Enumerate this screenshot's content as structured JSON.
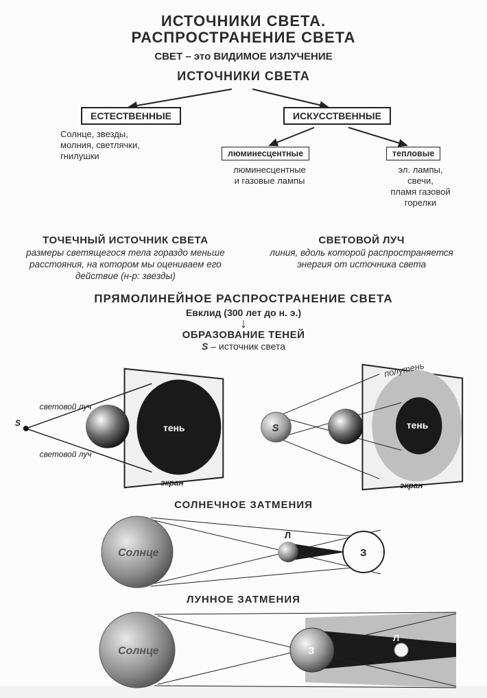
{
  "title_line1": "ИСТОЧНИКИ СВЕТА.",
  "title_line2": "РАСПРОСТРАНЕНИЕ СВЕТА",
  "subtitle_prefix": "СВЕТ",
  "subtitle_rest": " – это ВИДИМОЕ ИЗЛУЧЕНИЕ",
  "sources_heading": "ИСТОЧНИКИ СВЕТА",
  "tree": {
    "natural": {
      "label": "ЕСТЕСТВЕННЫЕ",
      "examples": "Солнце, звезды,\nмолния, светлячки,\nгнилушки"
    },
    "artificial": {
      "label": "ИСКУССТВЕННЫЕ",
      "lumin": {
        "label": "люминесцентные",
        "examples": "люминесцентные\nи газовые лампы"
      },
      "thermal": {
        "label": "тепловые",
        "examples": "эл. лампы,\nсвечи,\nпламя газовой\nгорелки"
      }
    }
  },
  "point_source": {
    "heading": "ТОЧЕЧНЫЙ ИСТОЧНИК СВЕТА",
    "body": "размеры светящегося тела гораздо меньше расстояния, на котором мы оцениваем его действие (н-р: звезды)"
  },
  "ray": {
    "heading": "СВЕТОВОЙ ЛУЧ",
    "body": "линия, вдоль которой распространяется энергия от источника света"
  },
  "propagation_heading": "ПРЯМОЛИНЕЙНОЕ РАСПРОСТРАНЕНИЕ СВЕТА",
  "euclid": "Евклид (300 лет до н. э.)",
  "arrow_down": "↓",
  "shadows_heading": "ОБРАЗОВАНИЕ ТЕНЕЙ",
  "s_letter": "S",
  "s_desc": " – источник света",
  "diagram_point": {
    "S": "S",
    "ray_label": "световой луч",
    "shadow": "тень",
    "screen": "экран"
  },
  "diagram_ext": {
    "S": "S",
    "penumbra": "полутень",
    "shadow": "тень",
    "screen": "экран"
  },
  "solar_heading": "СОЛНЕЧНОЕ  ЗАТМЕНИЯ",
  "lunar_heading": "ЛУННОЕ  ЗАТМЕНИЯ",
  "sun": "Солнце",
  "earth": "З",
  "moon": "Л",
  "colors": {
    "ink": "#2a2a2a",
    "bg": "#fcfcfc",
    "dark": "#1a1a1a",
    "grey": "#8a8a8a",
    "lightgrey": "#c8c8c8",
    "midgrey": "#707070",
    "screen_fill": "#f0f0f0",
    "penumbra_fill": "#bfbfbf"
  }
}
